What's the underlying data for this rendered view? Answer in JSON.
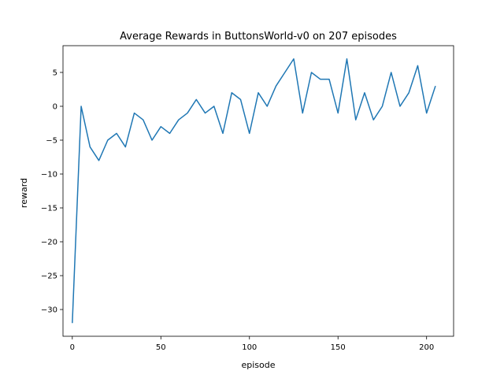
{
  "chart_data": {
    "type": "line",
    "title": "Average Rewards in ButtonsWorld-v0 on 207 episodes",
    "xlabel": "episode",
    "ylabel": "reward",
    "xlim": [
      -5.25,
      215.25
    ],
    "ylim": [
      -33.95,
      8.95
    ],
    "x_ticks": [
      0,
      50,
      100,
      150,
      200
    ],
    "y_ticks": [
      -30,
      -25,
      -20,
      -15,
      -10,
      -5,
      0,
      5
    ],
    "grid": false,
    "line_color": "#1f77b4",
    "x": [
      0,
      5,
      10,
      15,
      20,
      25,
      30,
      35,
      40,
      45,
      50,
      55,
      60,
      65,
      70,
      75,
      80,
      85,
      90,
      95,
      100,
      105,
      110,
      115,
      120,
      125,
      130,
      135,
      140,
      145,
      150,
      155,
      160,
      165,
      170,
      175,
      180,
      185,
      190,
      195,
      200,
      205
    ],
    "y": [
      -32,
      0,
      -6,
      -8,
      -5,
      -4,
      -6,
      -1,
      -2,
      -5,
      -3,
      -4,
      -2,
      -1,
      1,
      -1,
      0,
      -4,
      2,
      1,
      -4,
      2,
      0,
      3,
      5,
      7,
      -1,
      5,
      4,
      4,
      -1,
      7,
      -2,
      2,
      -2,
      0,
      5,
      0,
      2,
      6,
      -1,
      3
    ]
  }
}
